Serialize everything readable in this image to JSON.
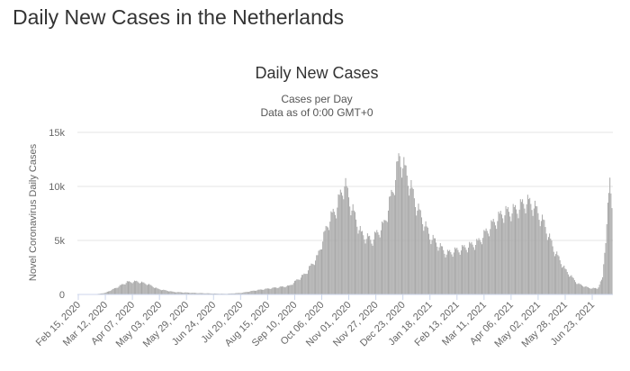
{
  "page": {
    "title": "Daily New Cases in the Netherlands"
  },
  "chart_data": {
    "type": "bar",
    "title": "Daily New Cases",
    "subtitle": "Cases per Day",
    "subtitle2": "Data as of 0:00 GMT+0",
    "xlabel": "",
    "ylabel": "Novel Coronavirus Daily Cases",
    "ylim": [
      0,
      15000
    ],
    "yticks": [
      {
        "value": 0,
        "label": "0"
      },
      {
        "value": 5000,
        "label": "5k"
      },
      {
        "value": 10000,
        "label": "10k"
      },
      {
        "value": 15000,
        "label": "15k"
      }
    ],
    "grid": true,
    "legend": "none",
    "bar_color": "#a8a8a8",
    "start_date": "Feb 15, 2020",
    "xtick_labels": [
      "Feb 15, 2020",
      "Mar 12, 2020",
      "Apr 07, 2020",
      "May 03, 2020",
      "May 29, 2020",
      "Jun 24, 2020",
      "Jul 20, 2020",
      "Aug 15, 2020",
      "Sep 10, 2020",
      "Oct 06, 2020",
      "Nov 01, 2020",
      "Nov 27, 2020",
      "Dec 23, 2020",
      "Jan 18, 2021",
      "Feb 13, 2021",
      "Mar 11, 2021",
      "Apr 06, 2021",
      "May 02, 2021",
      "May 28, 2021",
      "Jun 23, 2021"
    ],
    "keyframes": [
      {
        "date": "Feb 15, 2020",
        "value": 0
      },
      {
        "date": "Mar 02, 2020",
        "value": 10
      },
      {
        "date": "Mar 12, 2020",
        "value": 150
      },
      {
        "date": "Mar 22, 2020",
        "value": 600
      },
      {
        "date": "Apr 02, 2020",
        "value": 1150
      },
      {
        "date": "Apr 12, 2020",
        "value": 1200
      },
      {
        "date": "Apr 22, 2020",
        "value": 950
      },
      {
        "date": "May 02, 2020",
        "value": 500
      },
      {
        "date": "May 17, 2020",
        "value": 230
      },
      {
        "date": "Jun 06, 2020",
        "value": 140
      },
      {
        "date": "Jun 26, 2020",
        "value": 80
      },
      {
        "date": "Jul 06, 2020",
        "value": 60
      },
      {
        "date": "Jul 21, 2020",
        "value": 150
      },
      {
        "date": "Aug 05, 2020",
        "value": 400
      },
      {
        "date": "Aug 20, 2020",
        "value": 600
      },
      {
        "date": "Sep 05, 2020",
        "value": 800
      },
      {
        "date": "Sep 20, 2020",
        "value": 1900
      },
      {
        "date": "Oct 02, 2020",
        "value": 3500
      },
      {
        "date": "Oct 12, 2020",
        "value": 6600
      },
      {
        "date": "Oct 20, 2020",
        "value": 8000
      },
      {
        "date": "Oct 28, 2020",
        "value": 10300
      },
      {
        "date": "Nov 04, 2020",
        "value": 8000
      },
      {
        "date": "Nov 13, 2020",
        "value": 5600
      },
      {
        "date": "Nov 23, 2020",
        "value": 5000
      },
      {
        "date": "Dec 05, 2020",
        "value": 6500
      },
      {
        "date": "Dec 13, 2020",
        "value": 9500
      },
      {
        "date": "Dec 20, 2020",
        "value": 12800
      },
      {
        "date": "Dec 27, 2020",
        "value": 11000
      },
      {
        "date": "Jan 06, 2021",
        "value": 8000
      },
      {
        "date": "Jan 18, 2021",
        "value": 5400
      },
      {
        "date": "Feb 03, 2021",
        "value": 3800
      },
      {
        "date": "Feb 17, 2021",
        "value": 4200
      },
      {
        "date": "Mar 05, 2021",
        "value": 4800
      },
      {
        "date": "Mar 20, 2021",
        "value": 6600
      },
      {
        "date": "Mar 29, 2021",
        "value": 7500
      },
      {
        "date": "Apr 10, 2021",
        "value": 7800
      },
      {
        "date": "Apr 21, 2021",
        "value": 8600
      },
      {
        "date": "Apr 28, 2021",
        "value": 8200
      },
      {
        "date": "May 08, 2021",
        "value": 6500
      },
      {
        "date": "May 17, 2021",
        "value": 4200
      },
      {
        "date": "May 28, 2021",
        "value": 2300
      },
      {
        "date": "Jun 09, 2021",
        "value": 1000
      },
      {
        "date": "Jun 20, 2021",
        "value": 600
      },
      {
        "date": "Jun 28, 2021",
        "value": 550
      },
      {
        "date": "Jul 03, 2021",
        "value": 1500
      },
      {
        "date": "Jul 07, 2021",
        "value": 6700
      },
      {
        "date": "Jul 10, 2021",
        "value": 10200
      },
      {
        "date": "Jul 12, 2021",
        "value": 8500
      }
    ]
  }
}
